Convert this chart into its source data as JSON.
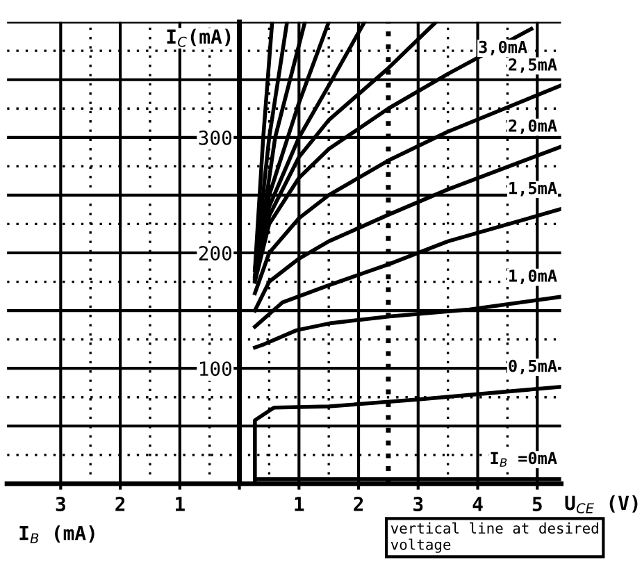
{
  "chart_data": {
    "type": "line",
    "ylabel": "I$_{C}$(mA)",
    "xlabel": "U$_{CE}$ (V)",
    "annotations": [
      "I$_{B}$ (mA)"
    ],
    "xlim": [
      -3.9,
      5.4
    ],
    "ylim": [
      0,
      400
    ],
    "xticks": [
      {
        "value": -3,
        "label": "3"
      },
      {
        "value": -2,
        "label": "2"
      },
      {
        "value": -1,
        "label": "1"
      },
      {
        "value": 0,
        "label": null
      },
      1,
      2,
      3,
      4,
      5
    ],
    "yticks": [
      {
        "value": 0,
        "label": null
      },
      {
        "value": 50,
        "label": null
      },
      100,
      {
        "value": 150,
        "label": null
      },
      200,
      {
        "value": 250,
        "label": null
      },
      300,
      {
        "value": 350,
        "label": null
      },
      {
        "value": 400,
        "label": null
      }
    ],
    "grid": true,
    "marker": "none",
    "line_style": "solid",
    "ref_lines": [
      {
        "axis": "x",
        "value": 2.5,
        "label": "vertical line at desired voltage",
        "line_style": "dotted",
        "color": "#000000"
      }
    ],
    "series": [
      {
        "name": "I$_{B}$ =0mA",
        "color": "#000000",
        "x": [
          0.26,
          5.4
        ],
        "values": [
          4,
          4
        ]
      },
      {
        "name": "0,5mA",
        "color": "#000000",
        "x": [
          0.26,
          0.26,
          0.58,
          1.5,
          3.0,
          5.4
        ],
        "values": [
          0,
          55,
          66,
          67,
          73,
          84
        ]
      },
      {
        "name": "1,0mA",
        "color": "#000000",
        "x": [
          0.26,
          0.42,
          0.96,
          1.52,
          2.52,
          3.86,
          5.4
        ],
        "values": [
          118,
          121,
          133,
          139,
          145,
          151,
          162
        ]
      },
      {
        "name": "1,5mA",
        "color": "#000000",
        "x": [
          0.26,
          0.72,
          1.5,
          2.5,
          3.5,
          5.4
        ],
        "values": [
          136,
          157,
          172,
          190,
          210,
          238
        ]
      },
      {
        "name": "2,0mA",
        "color": "#000000",
        "x": [
          0.26,
          0.5,
          1.0,
          1.5,
          2.5,
          3.5,
          5.4
        ],
        "values": [
          150,
          175,
          195,
          210,
          233,
          255,
          292
        ]
      },
      {
        "name": "2,5mA",
        "color": "#000000",
        "x": [
          0.26,
          0.5,
          1.0,
          1.5,
          2.5,
          3.5,
          5.4
        ],
        "values": [
          165,
          200,
          230,
          250,
          280,
          305,
          345
        ]
      },
      {
        "name": "3,0mA",
        "color": "#000000",
        "x": [
          0.26,
          0.5,
          1.0,
          1.5,
          2.5,
          3.5,
          4.9
        ],
        "values": [
          175,
          225,
          265,
          290,
          325,
          355,
          394
        ]
      },
      {
        "color": "#000000",
        "x": [
          0.26,
          0.5,
          1.0,
          1.5,
          2.5,
          3.3
        ],
        "values": [
          176,
          232,
          283,
          315,
          360,
          400
        ]
      },
      {
        "color": "#000000",
        "x": [
          0.26,
          0.5,
          1.0,
          1.5,
          2.1
        ],
        "values": [
          178,
          240,
          300,
          345,
          400
        ]
      },
      {
        "color": "#000000",
        "x": [
          0.26,
          0.5,
          1.0,
          1.5
        ],
        "values": [
          180,
          250,
          330,
          400
        ]
      },
      {
        "color": "#000000",
        "x": [
          0.26,
          0.6,
          1.1
        ],
        "values": [
          180,
          300,
          400
        ]
      },
      {
        "color": "#000000",
        "x": [
          0.26,
          0.5,
          0.8
        ],
        "values": [
          185,
          300,
          400
        ]
      },
      {
        "color": "#000000",
        "x": [
          0.26,
          0.4,
          0.55
        ],
        "values": [
          185,
          300,
          400
        ]
      }
    ]
  }
}
